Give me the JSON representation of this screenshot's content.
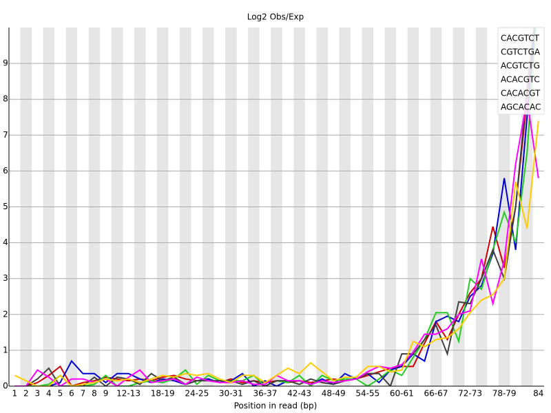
{
  "chart_data": {
    "type": "line",
    "title": "Log2 Obs/Exp",
    "x_label": "Position in read (bp)",
    "categories": [
      "1",
      "2",
      "3",
      "4",
      "5",
      "6",
      "7",
      "8",
      "9",
      null,
      "12-13",
      null,
      null,
      "18-19",
      null,
      null,
      "24-25",
      null,
      null,
      "30-31",
      null,
      null,
      "36-37",
      null,
      null,
      "42-43",
      null,
      null,
      "48-49",
      null,
      null,
      "54-55",
      null,
      null,
      "60-61",
      null,
      null,
      "66-67",
      null,
      null,
      "72-73",
      null,
      null,
      "78-79",
      null,
      null,
      "84"
    ],
    "ylim": [
      0,
      10
    ],
    "yticks": [
      0,
      1,
      2,
      3,
      4,
      5,
      6,
      7,
      8,
      9
    ],
    "grid": true,
    "legend": "top-right",
    "series": [
      {
        "name": "CACGTCT",
        "color": "#cc0000",
        "values": [
          0,
          0,
          0.1,
          0.3,
          0.55,
          0,
          0.1,
          0.15,
          0.25,
          0.2,
          0.15,
          0.2,
          0.15,
          0.25,
          0.3,
          0.2,
          0.15,
          0.2,
          0.1,
          0.2,
          0.1,
          0.15,
          0.1,
          0.15,
          0.1,
          0.15,
          0.1,
          0.15,
          0.2,
          0.15,
          0.2,
          0.3,
          0.4,
          0.5,
          0.55,
          0.55,
          1.2,
          1.8,
          1.3,
          2.0,
          2.6,
          3.0,
          4.45,
          3.3,
          5.0,
          8.0,
          11
        ]
      },
      {
        "name": "CGTCTGA",
        "color": "#0000cc",
        "values": [
          0,
          0,
          0,
          0,
          0.1,
          0.7,
          0.35,
          0.35,
          0.1,
          0.35,
          0.35,
          0.2,
          0.1,
          0.2,
          0.15,
          0.05,
          0.15,
          0.2,
          0.1,
          0.15,
          0.35,
          0,
          0.15,
          0,
          0.15,
          0.15,
          0.05,
          0.2,
          0.05,
          0.35,
          0.2,
          0.35,
          0.1,
          0.45,
          0.55,
          0.9,
          0.7,
          1.8,
          1.95,
          1.8,
          2.5,
          2.8,
          3.7,
          5.8,
          3.8,
          7.5,
          11
        ]
      },
      {
        "name": "ACGTCTG",
        "color": "#22cc22",
        "values": [
          0,
          0,
          0,
          0.05,
          0.3,
          0,
          0,
          0.05,
          0.3,
          0,
          0,
          0.1,
          0.15,
          0.1,
          0.2,
          0.45,
          0.05,
          0.3,
          0.15,
          0.15,
          0.15,
          0.3,
          0,
          0.15,
          0.1,
          0.3,
          0,
          0.3,
          0.15,
          0.2,
          0.2,
          0,
          0.2,
          0.45,
          0.3,
          0.8,
          1.3,
          2.05,
          2.05,
          1.25,
          3.0,
          2.7,
          3.8,
          4.85,
          4.0,
          6.5,
          11
        ]
      },
      {
        "name": "ACACGTC",
        "color": "#404040",
        "values": [
          0,
          0,
          0.2,
          0.5,
          0,
          0,
          0,
          0.25,
          0,
          0.25,
          0.2,
          0.05,
          0.35,
          0.15,
          0.25,
          0.05,
          0.15,
          0.15,
          0.15,
          0.15,
          0.05,
          0.15,
          0,
          0.15,
          0.15,
          0.05,
          0.2,
          0.1,
          0.05,
          0.15,
          0.2,
          0.35,
          0.35,
          0,
          0.9,
          0.9,
          1.3,
          1.7,
          0.9,
          2.35,
          2.3,
          3.0,
          3.8,
          3.0,
          5.0,
          8.3,
          11
        ]
      },
      {
        "name": "CACACGT",
        "color": "#ff00ff",
        "values": [
          0,
          0,
          0.45,
          0.25,
          0,
          0.2,
          0.2,
          0.1,
          0.2,
          0,
          0.25,
          0.45,
          0.1,
          0.15,
          0.2,
          0.05,
          0.25,
          0.15,
          0.1,
          0.1,
          0.15,
          0.05,
          0.05,
          0.3,
          0.15,
          0.15,
          0.05,
          0.15,
          0.1,
          0.15,
          0.2,
          0.4,
          0.55,
          0.5,
          0.6,
          0.95,
          1.45,
          1.45,
          1.6,
          2.0,
          2.1,
          3.55,
          2.3,
          3.5,
          6.2,
          8,
          5.8
        ]
      },
      {
        "name": "AGCACAC",
        "color": "#ffcc00",
        "values": [
          0.3,
          0.15,
          0,
          0,
          0.3,
          0,
          0.05,
          0.1,
          0.2,
          0.15,
          0.2,
          0.1,
          0.2,
          0.3,
          0.25,
          0.35,
          0.3,
          0.35,
          0.2,
          0.1,
          0.3,
          0.3,
          0.1,
          0.3,
          0.5,
          0.35,
          0.65,
          0.4,
          0.15,
          0.25,
          0.25,
          0.55,
          0.55,
          0.4,
          0.45,
          1.25,
          1.1,
          1.3,
          1.35,
          1.6,
          2.05,
          2.4,
          2.55,
          3.0,
          5.7,
          4.4,
          7.4
        ]
      }
    ]
  }
}
